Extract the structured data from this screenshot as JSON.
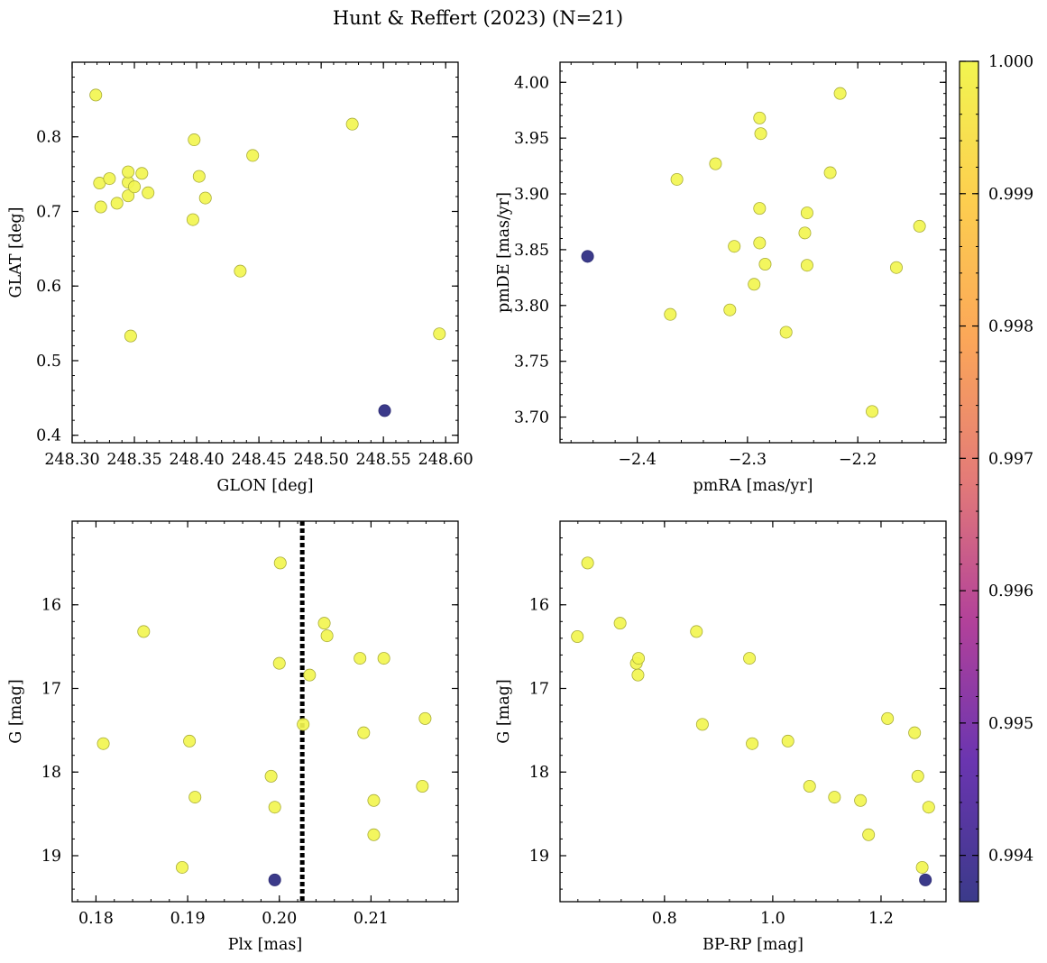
{
  "figure": {
    "title": "Hunt & Reffert (2023) (N=21)"
  },
  "colorbar": {
    "ticks": [
      "1.000",
      "0.999",
      "0.998",
      "0.997",
      "0.996",
      "0.995",
      "0.994"
    ],
    "tick_values": [
      1.0,
      0.999,
      0.998,
      0.997,
      0.996,
      0.995,
      0.994
    ],
    "range": [
      0.99365,
      1.0
    ],
    "colormap": "plasma",
    "stops": [
      "#3b3a8a",
      "#6a35b0",
      "#b2419a",
      "#e37a78",
      "#fba659",
      "#fdce4f",
      "#f2f550"
    ]
  },
  "chart_data": [
    {
      "type": "scatter",
      "id": "glon-glat",
      "xlabel": "GLON [deg]",
      "ylabel": "GLAT [deg]",
      "xlim": [
        248.3,
        248.61
      ],
      "ylim": [
        0.39,
        0.9
      ],
      "xticks": [
        248.3,
        248.35,
        248.4,
        248.45,
        248.5,
        248.55,
        248.6
      ],
      "xtick_labels": [
        "248.30",
        "248.35",
        "248.40",
        "248.45",
        "248.50",
        "248.55",
        "248.60"
      ],
      "yticks": [
        0.4,
        0.5,
        0.6,
        0.7,
        0.8
      ],
      "ytick_labels": [
        "0.4",
        "0.5",
        "0.6",
        "0.7",
        "0.8"
      ],
      "points": [
        {
          "x": 248.319,
          "y": 0.856,
          "c": 1.0
        },
        {
          "x": 248.322,
          "y": 0.738,
          "c": 1.0
        },
        {
          "x": 248.323,
          "y": 0.706,
          "c": 1.0
        },
        {
          "x": 248.33,
          "y": 0.744,
          "c": 1.0
        },
        {
          "x": 248.336,
          "y": 0.711,
          "c": 1.0
        },
        {
          "x": 248.345,
          "y": 0.721,
          "c": 1.0
        },
        {
          "x": 248.345,
          "y": 0.739,
          "c": 1.0
        },
        {
          "x": 248.345,
          "y": 0.753,
          "c": 1.0
        },
        {
          "x": 248.35,
          "y": 0.733,
          "c": 1.0
        },
        {
          "x": 248.347,
          "y": 0.533,
          "c": 1.0
        },
        {
          "x": 248.356,
          "y": 0.751,
          "c": 1.0
        },
        {
          "x": 248.361,
          "y": 0.725,
          "c": 1.0
        },
        {
          "x": 248.397,
          "y": 0.689,
          "c": 1.0
        },
        {
          "x": 248.398,
          "y": 0.796,
          "c": 1.0
        },
        {
          "x": 248.402,
          "y": 0.747,
          "c": 1.0
        },
        {
          "x": 248.407,
          "y": 0.718,
          "c": 1.0
        },
        {
          "x": 248.435,
          "y": 0.62,
          "c": 1.0
        },
        {
          "x": 248.445,
          "y": 0.775,
          "c": 1.0
        },
        {
          "x": 248.525,
          "y": 0.817,
          "c": 1.0
        },
        {
          "x": 248.551,
          "y": 0.433,
          "c": 0.99365
        },
        {
          "x": 248.595,
          "y": 0.536,
          "c": 1.0
        }
      ]
    },
    {
      "type": "scatter",
      "id": "pmra-pmde",
      "xlabel": "pmRA [mas/yr]",
      "ylabel": "pmDE [mas/yr]",
      "xlim": [
        -2.47,
        -2.12
      ],
      "ylim": [
        3.677,
        4.018
      ],
      "xticks": [
        -2.4,
        -2.3,
        -2.2
      ],
      "xtick_labels": [
        "−2.4",
        "−2.3",
        "−2.2"
      ],
      "yticks": [
        3.7,
        3.75,
        3.8,
        3.85,
        3.9,
        3.95,
        4.0
      ],
      "ytick_labels": [
        "3.70",
        "3.75",
        "3.80",
        "3.85",
        "3.90",
        "3.95",
        "4.00"
      ],
      "points": [
        {
          "x": -2.445,
          "y": 3.844,
          "c": 0.99365
        },
        {
          "x": -2.37,
          "y": 3.792,
          "c": 1.0
        },
        {
          "x": -2.364,
          "y": 3.913,
          "c": 1.0
        },
        {
          "x": -2.329,
          "y": 3.927,
          "c": 1.0
        },
        {
          "x": -2.316,
          "y": 3.796,
          "c": 1.0
        },
        {
          "x": -2.312,
          "y": 3.853,
          "c": 1.0
        },
        {
          "x": -2.294,
          "y": 3.819,
          "c": 1.0
        },
        {
          "x": -2.289,
          "y": 3.968,
          "c": 1.0
        },
        {
          "x": -2.288,
          "y": 3.954,
          "c": 1.0
        },
        {
          "x": -2.289,
          "y": 3.887,
          "c": 1.0
        },
        {
          "x": -2.289,
          "y": 3.856,
          "c": 1.0
        },
        {
          "x": -2.284,
          "y": 3.837,
          "c": 1.0
        },
        {
          "x": -2.265,
          "y": 3.776,
          "c": 1.0
        },
        {
          "x": -2.248,
          "y": 3.865,
          "c": 1.0
        },
        {
          "x": -2.246,
          "y": 3.883,
          "c": 1.0
        },
        {
          "x": -2.246,
          "y": 3.836,
          "c": 1.0
        },
        {
          "x": -2.225,
          "y": 3.919,
          "c": 1.0
        },
        {
          "x": -2.216,
          "y": 3.99,
          "c": 1.0
        },
        {
          "x": -2.187,
          "y": 3.705,
          "c": 1.0
        },
        {
          "x": -2.165,
          "y": 3.834,
          "c": 1.0
        },
        {
          "x": -2.144,
          "y": 3.871,
          "c": 1.0
        }
      ]
    },
    {
      "type": "scatter",
      "id": "plx-g",
      "xlabel": "Plx [mas]",
      "ylabel": "G [mag]",
      "xlim": [
        0.1774,
        0.2195
      ],
      "ylim": [
        19.55,
        15.0
      ],
      "y_inverted": true,
      "xticks": [
        0.18,
        0.19,
        0.2,
        0.21
      ],
      "xtick_labels": [
        "0.18",
        "0.19",
        "0.20",
        "0.21"
      ],
      "yticks": [
        16,
        17,
        18,
        19
      ],
      "ytick_labels": [
        "16",
        "17",
        "18",
        "19"
      ],
      "vline": 0.2025,
      "points": [
        {
          "x": 0.1808,
          "y": 17.66,
          "c": 1.0
        },
        {
          "x": 0.1852,
          "y": 16.32,
          "c": 1.0
        },
        {
          "x": 0.1894,
          "y": 19.14,
          "c": 1.0
        },
        {
          "x": 0.1902,
          "y": 17.63,
          "c": 1.0
        },
        {
          "x": 0.1908,
          "y": 18.3,
          "c": 1.0
        },
        {
          "x": 0.1991,
          "y": 18.05,
          "c": 1.0
        },
        {
          "x": 0.1995,
          "y": 18.42,
          "c": 1.0
        },
        {
          "x": 0.1995,
          "y": 19.29,
          "c": 0.99365
        },
        {
          "x": 0.2001,
          "y": 15.5,
          "c": 1.0
        },
        {
          "x": 0.2,
          "y": 16.7,
          "c": 1.0
        },
        {
          "x": 0.2026,
          "y": 17.43,
          "c": 1.0
        },
        {
          "x": 0.2033,
          "y": 16.84,
          "c": 1.0
        },
        {
          "x": 0.2049,
          "y": 16.22,
          "c": 1.0
        },
        {
          "x": 0.2052,
          "y": 16.37,
          "c": 1.0
        },
        {
          "x": 0.2088,
          "y": 16.64,
          "c": 1.0
        },
        {
          "x": 0.2092,
          "y": 17.53,
          "c": 1.0
        },
        {
          "x": 0.2103,
          "y": 18.34,
          "c": 1.0
        },
        {
          "x": 0.2103,
          "y": 18.75,
          "c": 1.0
        },
        {
          "x": 0.2114,
          "y": 16.64,
          "c": 1.0
        },
        {
          "x": 0.2156,
          "y": 18.17,
          "c": 1.0
        },
        {
          "x": 0.2159,
          "y": 17.36,
          "c": 1.0
        }
      ]
    },
    {
      "type": "scatter",
      "id": "bprp-g",
      "xlabel": "BP-RP [mag]",
      "ylabel": "G [mag]",
      "xlim": [
        0.607,
        1.32
      ],
      "ylim": [
        19.55,
        15.0
      ],
      "y_inverted": true,
      "xticks": [
        0.8,
        1.0,
        1.2
      ],
      "xtick_labels": [
        "0.8",
        "1.0",
        "1.2"
      ],
      "yticks": [
        16,
        17,
        18,
        19
      ],
      "ytick_labels": [
        "16",
        "17",
        "18",
        "19"
      ],
      "points": [
        {
          "x": 0.639,
          "y": 16.38,
          "c": 1.0
        },
        {
          "x": 0.658,
          "y": 15.5,
          "c": 1.0
        },
        {
          "x": 0.718,
          "y": 16.22,
          "c": 1.0
        },
        {
          "x": 0.748,
          "y": 16.7,
          "c": 1.0
        },
        {
          "x": 0.752,
          "y": 16.64,
          "c": 1.0
        },
        {
          "x": 0.751,
          "y": 16.84,
          "c": 1.0
        },
        {
          "x": 0.859,
          "y": 16.32,
          "c": 1.0
        },
        {
          "x": 0.87,
          "y": 17.43,
          "c": 1.0
        },
        {
          "x": 0.957,
          "y": 16.64,
          "c": 1.0
        },
        {
          "x": 0.962,
          "y": 17.66,
          "c": 1.0
        },
        {
          "x": 1.028,
          "y": 17.63,
          "c": 1.0
        },
        {
          "x": 1.068,
          "y": 18.17,
          "c": 1.0
        },
        {
          "x": 1.114,
          "y": 18.3,
          "c": 1.0
        },
        {
          "x": 1.162,
          "y": 18.34,
          "c": 1.0
        },
        {
          "x": 1.177,
          "y": 18.75,
          "c": 1.0
        },
        {
          "x": 1.212,
          "y": 17.36,
          "c": 1.0
        },
        {
          "x": 1.262,
          "y": 17.53,
          "c": 1.0
        },
        {
          "x": 1.268,
          "y": 18.05,
          "c": 1.0
        },
        {
          "x": 1.276,
          "y": 19.14,
          "c": 1.0
        },
        {
          "x": 1.288,
          "y": 18.42,
          "c": 1.0
        },
        {
          "x": 1.282,
          "y": 19.29,
          "c": 0.99365
        }
      ]
    }
  ]
}
